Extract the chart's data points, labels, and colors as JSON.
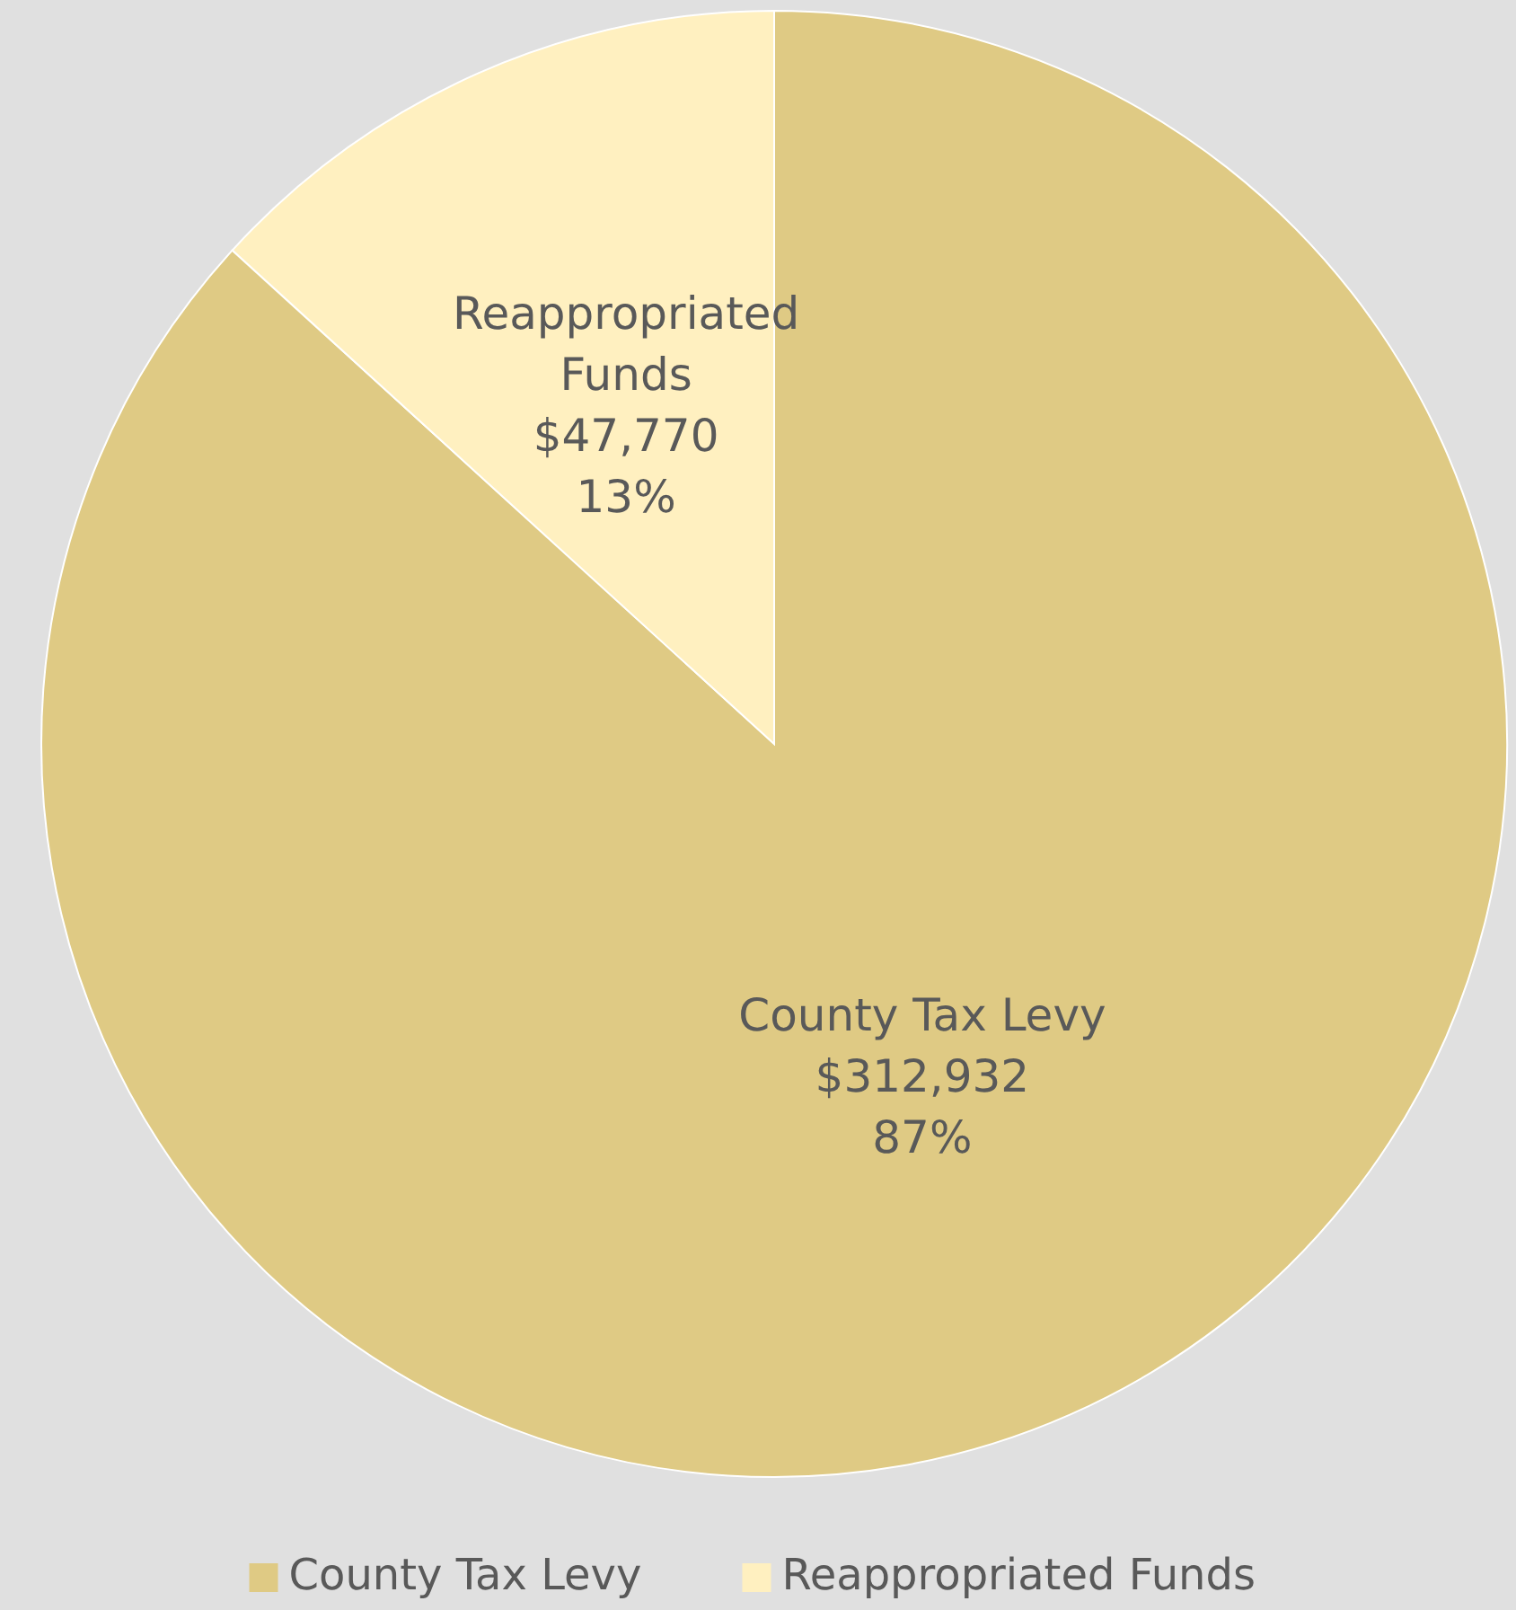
{
  "chart_data": {
    "type": "pie",
    "categories": [
      "County Tax Levy",
      "Reappropriated Funds"
    ],
    "values": [
      312932,
      47770
    ],
    "colors": [
      "#dfca84",
      "#fff0c0"
    ],
    "value_labels": [
      "$312,932\n87%",
      "$47,770\n13%"
    ],
    "legend": "bottom"
  }
}
